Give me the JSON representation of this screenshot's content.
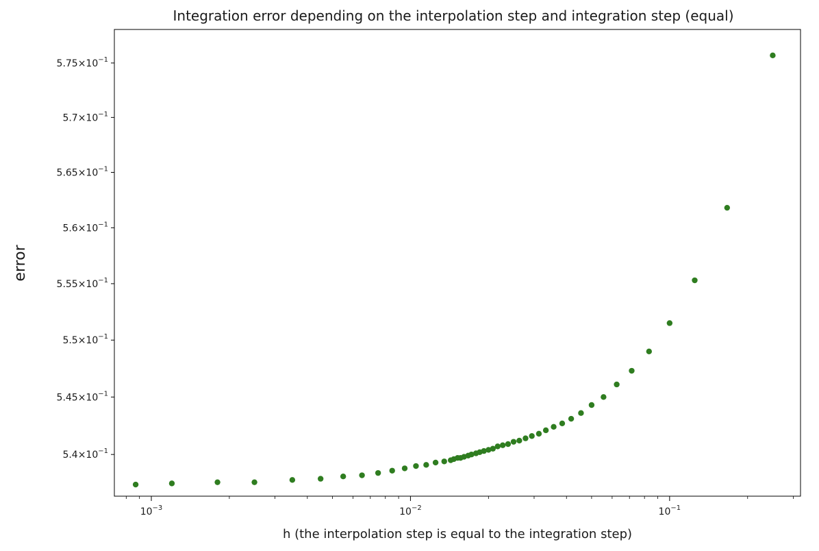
{
  "chart_data": {
    "type": "scatter",
    "title": "Integration error depending on the interpolation step and integration step (equal)",
    "xlabel": "h (the interpolation step is equal to the integration step)",
    "ylabel": "error",
    "x_scale": "log",
    "y_scale": "log",
    "xlim": [
      0.00072,
      0.32
    ],
    "ylim": [
      0.5364,
      0.5781
    ],
    "grid": false,
    "marker_color": "#2f7d20",
    "x_ticks": [
      {
        "value": 0.001,
        "base": "10",
        "exp": "−3"
      },
      {
        "value": 0.01,
        "base": "10",
        "exp": "−2"
      },
      {
        "value": 0.1,
        "base": "10",
        "exp": "−1"
      }
    ],
    "y_ticks": [
      {
        "value": 0.54,
        "mant": "5.4",
        "base": "10",
        "exp": "−1"
      },
      {
        "value": 0.545,
        "mant": "5.45",
        "base": "10",
        "exp": "−1"
      },
      {
        "value": 0.55,
        "mant": "5.5",
        "base": "10",
        "exp": "−1"
      },
      {
        "value": 0.555,
        "mant": "5.55",
        "base": "10",
        "exp": "−1"
      },
      {
        "value": 0.56,
        "mant": "5.6",
        "base": "10",
        "exp": "−1"
      },
      {
        "value": 0.565,
        "mant": "5.65",
        "base": "10",
        "exp": "−1"
      },
      {
        "value": 0.57,
        "mant": "5.7",
        "base": "10",
        "exp": "−1"
      },
      {
        "value": 0.575,
        "mant": "5.75",
        "base": "10",
        "exp": "−1"
      }
    ],
    "series": [
      {
        "x": [
          0.25,
          0.1667,
          0.125,
          0.1,
          0.0833,
          0.0714,
          0.0625,
          0.0556,
          0.05,
          0.0455,
          0.0417,
          0.0385,
          0.0357,
          0.0333,
          0.0313,
          0.0294,
          0.0278,
          0.0263,
          0.025,
          0.0238,
          0.0227,
          0.0217,
          0.0208,
          0.02,
          0.0192,
          0.0185,
          0.0179,
          0.0172,
          0.0167,
          0.0161,
          0.0156,
          0.0152,
          0.0147,
          0.0143,
          0.0135,
          0.0125,
          0.0115,
          0.0105,
          0.0095,
          0.0085,
          0.0075,
          0.0065,
          0.0055,
          0.0045,
          0.0035,
          0.0025,
          0.0018,
          0.0012,
          0.00087
        ],
        "y": [
          0.5757,
          0.5618,
          0.5553,
          0.5515,
          0.549,
          0.5473,
          0.5461,
          0.545,
          0.5443,
          0.5436,
          0.5431,
          0.5427,
          0.5424,
          0.5421,
          0.5418,
          0.5416,
          0.5414,
          0.5412,
          0.5411,
          0.5409,
          0.5408,
          0.5407,
          0.5405,
          0.5404,
          0.5403,
          0.5402,
          0.5401,
          0.54,
          0.5399,
          0.5398,
          0.5397,
          0.5397,
          0.5396,
          0.5395,
          0.5394,
          0.5393,
          0.5391,
          0.539,
          0.5388,
          0.5386,
          0.5384,
          0.5382,
          0.5381,
          0.5379,
          0.5378,
          0.5376,
          0.5376,
          0.5375,
          0.5374
        ]
      }
    ]
  }
}
